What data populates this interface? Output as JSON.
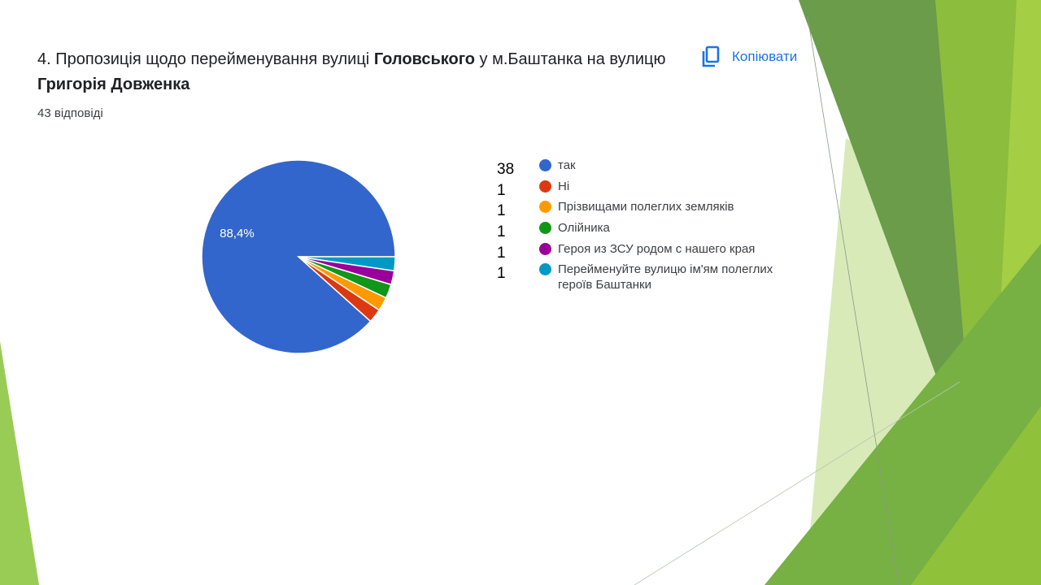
{
  "question": {
    "prefix": "4. Пропозиція щодо перейменування вулиці ",
    "bold_1": "Головського",
    "middle": "  у м.Баштанка на вулицю ",
    "bold_2": "Григорія Довженка"
  },
  "responses_label": "43 відповіді",
  "copy_button": {
    "label": "Копіювати",
    "icon": "copy-icon",
    "color": "#1a73e8"
  },
  "chart_data": {
    "type": "pie",
    "total": 43,
    "slices": [
      {
        "label": "так",
        "count": 38,
        "percent": "88,4%",
        "color": "#3366cc"
      },
      {
        "label": "Ні",
        "count": 1,
        "color": "#dc3912"
      },
      {
        "label": "Прізвищами полеглих земляків",
        "count": 1,
        "color": "#ff9900"
      },
      {
        "label": "Олійника",
        "count": 1,
        "color": "#109618"
      },
      {
        "label": "Героя из ЗСУ родом с нашего края",
        "count": 1,
        "color": "#990099"
      },
      {
        "label": "Перейменуйте вулицю ім'ям полеглих героїв Баштанки",
        "count": 1,
        "color": "#0099c6"
      }
    ]
  }
}
